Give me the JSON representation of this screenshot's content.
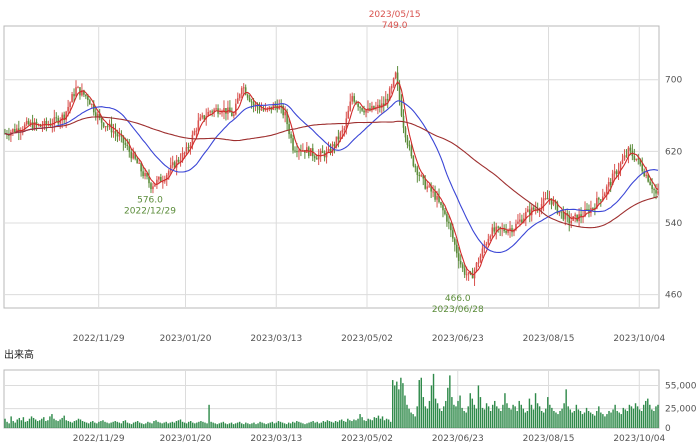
{
  "chart_data": {
    "type": "candlestick",
    "price_panel": {
      "y_ticks": [
        {
          "value": 460,
          "label": "460"
        },
        {
          "value": 540,
          "label": "540"
        },
        {
          "value": 620,
          "label": "620"
        },
        {
          "value": 700,
          "label": "700"
        }
      ],
      "ylim": [
        445,
        760
      ],
      "grid": true
    },
    "x_ticks": [
      {
        "x": 48,
        "label": "2022/11/29"
      },
      {
        "x": 92,
        "label": "2023/01/20"
      },
      {
        "x": 138,
        "label": "2023/03/13"
      },
      {
        "x": 184,
        "label": "2023/05/02"
      },
      {
        "x": 230,
        "label": "2023/06/23"
      },
      {
        "x": 276,
        "label": "2023/08/15"
      },
      {
        "x": 322,
        "label": "2023/10/04"
      }
    ],
    "xlim": [
      0,
      332
    ],
    "annotations": [
      {
        "type": "high",
        "x": 198,
        "value": 749,
        "date": "2023/05/15",
        "value_label": "749.0",
        "date_label": "2023/05/15",
        "color": "#d9534f"
      },
      {
        "type": "low",
        "x": 74,
        "value": 576,
        "date": "2022/12/29",
        "value_label": "576.0",
        "date_label": "2022/12/29",
        "color": "#5b8c3a"
      },
      {
        "type": "low",
        "x": 230,
        "value": 466,
        "date": "2023/06/28",
        "value_label": "466.0",
        "date_label": "2023/06/28",
        "color": "#5b8c3a"
      }
    ],
    "price_path": [
      [
        0,
        640
      ],
      [
        6,
        645
      ],
      [
        12,
        650
      ],
      [
        18,
        648
      ],
      [
        24,
        652
      ],
      [
        30,
        660
      ],
      [
        36,
        690
      ],
      [
        42,
        680
      ],
      [
        48,
        655
      ],
      [
        54,
        645
      ],
      [
        60,
        630
      ],
      [
        66,
        610
      ],
      [
        70,
        595
      ],
      [
        74,
        582
      ],
      [
        80,
        590
      ],
      [
        86,
        606
      ],
      [
        92,
        620
      ],
      [
        98,
        652
      ],
      [
        104,
        665
      ],
      [
        110,
        668
      ],
      [
        116,
        660
      ],
      [
        120,
        695
      ],
      [
        126,
        672
      ],
      [
        132,
        665
      ],
      [
        138,
        672
      ],
      [
        142,
        660
      ],
      [
        146,
        625
      ],
      [
        152,
        622
      ],
      [
        158,
        615
      ],
      [
        164,
        618
      ],
      [
        168,
        632
      ],
      [
        172,
        645
      ],
      [
        176,
        682
      ],
      [
        180,
        670
      ],
      [
        184,
        665
      ],
      [
        188,
        668
      ],
      [
        192,
        672
      ],
      [
        196,
        690
      ],
      [
        198,
        705
      ],
      [
        202,
        650
      ],
      [
        206,
        612
      ],
      [
        212,
        585
      ],
      [
        218,
        570
      ],
      [
        224,
        545
      ],
      [
        228,
        515
      ],
      [
        232,
        488
      ],
      [
        236,
        478
      ],
      [
        240,
        498
      ],
      [
        246,
        530
      ],
      [
        252,
        532
      ],
      [
        258,
        535
      ],
      [
        264,
        550
      ],
      [
        270,
        558
      ],
      [
        276,
        568
      ],
      [
        280,
        555
      ],
      [
        286,
        542
      ],
      [
        292,
        548
      ],
      [
        298,
        558
      ],
      [
        304,
        575
      ],
      [
        310,
        598
      ],
      [
        316,
        620
      ],
      [
        320,
        612
      ],
      [
        326,
        590
      ],
      [
        330,
        572
      ]
    ],
    "volume_panel": {
      "y_ticks": [
        {
          "value": 0,
          "label": "0"
        },
        {
          "value": 25000,
          "label": "25,000"
        },
        {
          "value": 55000,
          "label": "55,000"
        }
      ],
      "ylim": [
        0,
        75000
      ]
    },
    "volume": [
      12000,
      8000,
      6000,
      15000,
      9000,
      7000,
      11000,
      13000,
      10000,
      14000,
      8000,
      9000,
      12000,
      15000,
      13000,
      11000,
      9000,
      10000,
      12000,
      14000,
      9000,
      10000,
      15000,
      18000,
      12000,
      10000,
      9000,
      11000,
      13000,
      16000,
      10000,
      9000,
      8000,
      7000,
      9000,
      10000,
      12000,
      11000,
      9000,
      8000,
      7000,
      6000,
      8000,
      9000,
      7000,
      6000,
      8000,
      9000,
      10000,
      8000,
      7000,
      6000,
      7000,
      8000,
      9000,
      8000,
      7000,
      6000,
      9000,
      10000,
      7000,
      6000,
      5000,
      7000,
      8000,
      9000,
      7000,
      6000,
      5000,
      6000,
      8000,
      7000,
      6000,
      9000,
      10000,
      8000,
      7000,
      6000,
      7000,
      8000,
      6000,
      7000,
      8000,
      7000,
      9000,
      10000,
      11000,
      8000,
      7000,
      6000,
      8000,
      9000,
      7000,
      6000,
      7000,
      8000,
      9000,
      8000,
      7000,
      6000,
      30000,
      8000,
      7000,
      6000,
      5000,
      6000,
      7000,
      8000,
      6000,
      5000,
      6000,
      7000,
      5000,
      6000,
      7000,
      8000,
      6000,
      5000,
      7000,
      6000,
      5000,
      6000,
      7000,
      5000,
      6000,
      8000,
      7000,
      6000,
      5000,
      6000,
      7000,
      8000,
      6000,
      7000,
      9000,
      8000,
      7000,
      6000,
      5000,
      7000,
      6000,
      8000,
      7000,
      9000,
      8000,
      7000,
      6000,
      5000,
      6000,
      7000,
      8000,
      9000,
      7000,
      8000,
      6000,
      7000,
      9000,
      8000,
      10000,
      9000,
      8000,
      7000,
      9000,
      8000,
      10000,
      11000,
      9000,
      8000,
      12000,
      10000,
      9000,
      11000,
      10000,
      12000,
      18000,
      14000,
      10000,
      9000,
      12000,
      11000,
      10000,
      14000,
      13000,
      16000,
      12000,
      15000,
      10000,
      12000,
      11000,
      8000,
      62000,
      55000,
      60000,
      50000,
      65000,
      58000,
      42000,
      30000,
      25000,
      20000,
      18000,
      15000,
      28000,
      62000,
      65000,
      40000,
      28000,
      25000,
      35000,
      55000,
      70000,
      38000,
      32000,
      25000,
      22000,
      28000,
      35000,
      52000,
      68000,
      40000,
      30000,
      28000,
      35000,
      42000,
      26000,
      22000,
      20000,
      28000,
      45000,
      38000,
      30000,
      25000,
      55000,
      40000,
      26000,
      24000,
      32000,
      28000,
      22000,
      30000,
      35000,
      28000,
      25000,
      22000,
      30000,
      45000,
      32000,
      26000,
      24000,
      30000,
      28000,
      22000,
      35000,
      30000,
      25000,
      20000,
      22000,
      38000,
      30000,
      24000,
      45000,
      32000,
      28000,
      22000,
      20000,
      25000,
      40000,
      30000,
      26000,
      22000,
      20000,
      18000,
      22000,
      25000,
      32000,
      50000,
      28000,
      24000,
      20000,
      22000,
      30000,
      24000,
      22000,
      18000,
      20000,
      26000,
      22000,
      20000,
      18000,
      16000,
      22000,
      28000,
      20000,
      18000,
      15000,
      18000,
      22000,
      20000,
      24000,
      30000,
      22000,
      20000,
      18000,
      26000,
      24000,
      22000,
      30000,
      28000,
      25000,
      32000,
      28000,
      24000,
      22000,
      30000,
      35000,
      38000,
      30000,
      24000,
      22000,
      28000,
      30000
    ]
  },
  "labels": {
    "volume_panel_title": "出来高"
  },
  "colors": {
    "up": "#d9534f",
    "down": "#5b8c3a",
    "ma_short": "#d12a2a",
    "ma_mid": "#3b46d6",
    "ma_long": "#9e2f2f",
    "volume": "#2f8a4a",
    "grid": "#dcdcdc",
    "border": "#b8b8b8"
  }
}
